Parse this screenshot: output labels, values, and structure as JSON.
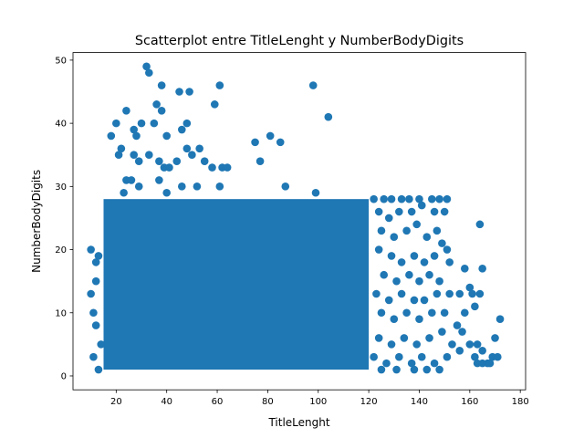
{
  "chart_data": {
    "type": "scatter",
    "title": "Scatterplot entre TitleLenght y NumberBodyDigits",
    "xlabel": "TitleLenght",
    "ylabel": "NumberBodyDigits",
    "xlim": [
      2.9,
      182.1
    ],
    "ylim": [
      -2.2,
      51.2
    ],
    "xticks": [
      20,
      40,
      60,
      80,
      100,
      120,
      140,
      160,
      180
    ],
    "yticks": [
      0,
      10,
      20,
      30,
      40,
      50
    ],
    "grid": false,
    "legend": "none",
    "marker_color": "#1f77b4",
    "dense_region": {
      "x_range": [
        15,
        120
      ],
      "y_range": [
        1,
        28
      ],
      "note": "points form a nearly solid block"
    },
    "points": [
      [
        32,
        49
      ],
      [
        33,
        48
      ],
      [
        38,
        46
      ],
      [
        45,
        45
      ],
      [
        49,
        45
      ],
      [
        61,
        46
      ],
      [
        98,
        46
      ],
      [
        59,
        43
      ],
      [
        27,
        39
      ],
      [
        30,
        40
      ],
      [
        36,
        43
      ],
      [
        38,
        42
      ],
      [
        48,
        40
      ],
      [
        35,
        40
      ],
      [
        20,
        40
      ],
      [
        24,
        42
      ],
      [
        104,
        41
      ],
      [
        18,
        38
      ],
      [
        21,
        35
      ],
      [
        22,
        36
      ],
      [
        27,
        35
      ],
      [
        28,
        38
      ],
      [
        40,
        38
      ],
      [
        48,
        36
      ],
      [
        53,
        36
      ],
      [
        46,
        39
      ],
      [
        81,
        38
      ],
      [
        85,
        37
      ],
      [
        75,
        37
      ],
      [
        77,
        34
      ],
      [
        29,
        34
      ],
      [
        33,
        35
      ],
      [
        37,
        34
      ],
      [
        39,
        33
      ],
      [
        41,
        33
      ],
      [
        44,
        34
      ],
      [
        50,
        35
      ],
      [
        55,
        34
      ],
      [
        58,
        33
      ],
      [
        62,
        33
      ],
      [
        64,
        33
      ],
      [
        24,
        31
      ],
      [
        26,
        31
      ],
      [
        37,
        31
      ],
      [
        40,
        29
      ],
      [
        46,
        30
      ],
      [
        52,
        30
      ],
      [
        61,
        30
      ],
      [
        87,
        30
      ],
      [
        99,
        29
      ],
      [
        29,
        30
      ],
      [
        23,
        29
      ],
      [
        10,
        20
      ],
      [
        10,
        13
      ],
      [
        11,
        10
      ],
      [
        12,
        18
      ],
      [
        13,
        19
      ],
      [
        12,
        8
      ],
      [
        14,
        5
      ],
      [
        11,
        3
      ],
      [
        13,
        1
      ],
      [
        12,
        15
      ],
      [
        122,
        28
      ],
      [
        126,
        28
      ],
      [
        129,
        28
      ],
      [
        133,
        28
      ],
      [
        136,
        28
      ],
      [
        140,
        28
      ],
      [
        145,
        28
      ],
      [
        148,
        28
      ],
      [
        151,
        28
      ],
      [
        124,
        26
      ],
      [
        128,
        25
      ],
      [
        132,
        26
      ],
      [
        137,
        26
      ],
      [
        141,
        27
      ],
      [
        146,
        26
      ],
      [
        150,
        26
      ],
      [
        125,
        23
      ],
      [
        130,
        22
      ],
      [
        135,
        23
      ],
      [
        139,
        24
      ],
      [
        143,
        22
      ],
      [
        147,
        23
      ],
      [
        149,
        21
      ],
      [
        151,
        20
      ],
      [
        164,
        24
      ],
      [
        124,
        20
      ],
      [
        129,
        19
      ],
      [
        133,
        18
      ],
      [
        138,
        19
      ],
      [
        142,
        18
      ],
      [
        146,
        19
      ],
      [
        152,
        18
      ],
      [
        126,
        16
      ],
      [
        131,
        15
      ],
      [
        136,
        16
      ],
      [
        140,
        15
      ],
      [
        144,
        16
      ],
      [
        148,
        15
      ],
      [
        158,
        17
      ],
      [
        165,
        17
      ],
      [
        123,
        13
      ],
      [
        128,
        12
      ],
      [
        133,
        13
      ],
      [
        138,
        12
      ],
      [
        142,
        12
      ],
      [
        147,
        13
      ],
      [
        152,
        13
      ],
      [
        156,
        13
      ],
      [
        160,
        14
      ],
      [
        161,
        13
      ],
      [
        164,
        13
      ],
      [
        125,
        10
      ],
      [
        130,
        9
      ],
      [
        135,
        10
      ],
      [
        140,
        9
      ],
      [
        145,
        10
      ],
      [
        150,
        10
      ],
      [
        155,
        8
      ],
      [
        158,
        10
      ],
      [
        162,
        11
      ],
      [
        172,
        9
      ],
      [
        124,
        6
      ],
      [
        129,
        5
      ],
      [
        134,
        6
      ],
      [
        139,
        5
      ],
      [
        144,
        6
      ],
      [
        149,
        7
      ],
      [
        153,
        5
      ],
      [
        157,
        7
      ],
      [
        163,
        5
      ],
      [
        170,
        6
      ],
      [
        122,
        3
      ],
      [
        127,
        2
      ],
      [
        132,
        3
      ],
      [
        137,
        2
      ],
      [
        141,
        3
      ],
      [
        146,
        2
      ],
      [
        151,
        3
      ],
      [
        156,
        4
      ],
      [
        160,
        5
      ],
      [
        162,
        3
      ],
      [
        165,
        4
      ],
      [
        125,
        1
      ],
      [
        131,
        1
      ],
      [
        138,
        1
      ],
      [
        143,
        1
      ],
      [
        148,
        1
      ],
      [
        163,
        2
      ],
      [
        165,
        2
      ],
      [
        167,
        2
      ],
      [
        168,
        2
      ],
      [
        169,
        3
      ],
      [
        171,
        3
      ]
    ]
  }
}
